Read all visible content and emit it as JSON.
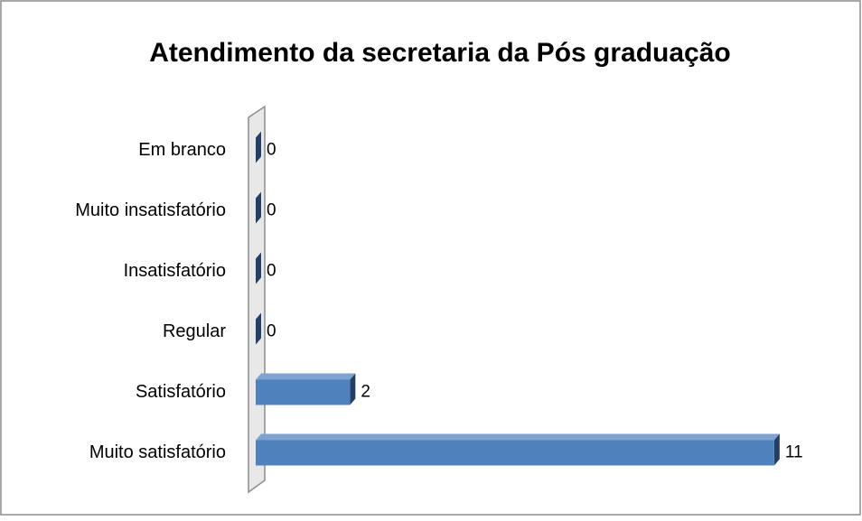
{
  "chart_data": {
    "type": "bar",
    "orientation": "horizontal",
    "title": "Atendimento da secretaria da Pós graduação",
    "categories": [
      "Em branco",
      "Muito insatisfatório",
      "Insatisfatório",
      "Regular",
      "Satisfatório",
      "Muito satisfatório"
    ],
    "values": [
      0,
      0,
      0,
      0,
      2,
      11
    ],
    "color": "#4f81bd",
    "xlim": [
      0,
      12
    ]
  }
}
